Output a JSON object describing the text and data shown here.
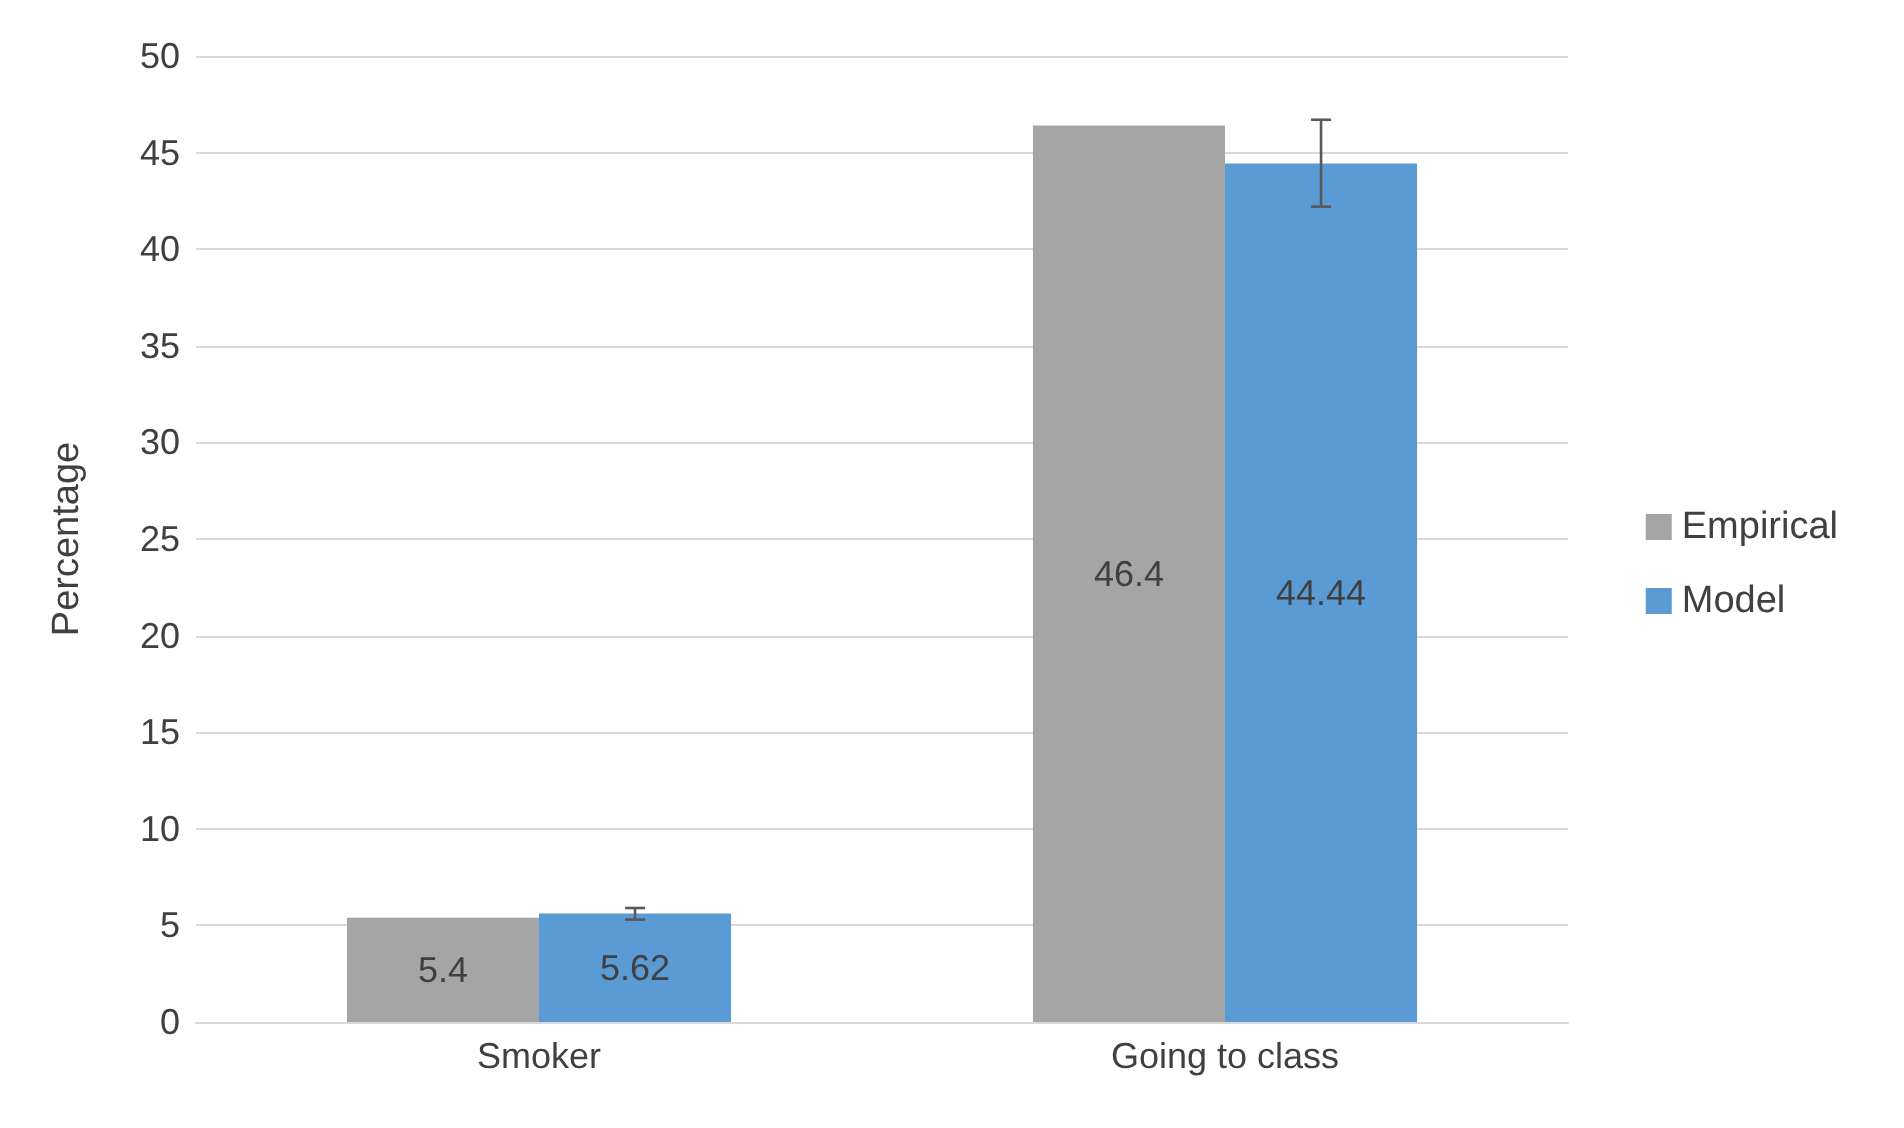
{
  "chart_data": {
    "type": "bar",
    "ylabel": "Percentage",
    "categories": [
      "Smoker",
      "Going to class"
    ],
    "series": [
      {
        "name": "Empirical",
        "color": "#a5a5a5",
        "values": [
          5.4,
          46.4
        ]
      },
      {
        "name": "Model",
        "color": "#5b9bd5",
        "values": [
          5.62,
          44.44
        ],
        "errors": [
          [
            5.3,
            5.9
          ],
          [
            42.2,
            46.7
          ]
        ]
      }
    ],
    "ylim": [
      0,
      50
    ],
    "yticks": [
      0,
      5,
      10,
      15,
      20,
      25,
      30,
      35,
      40,
      45,
      50
    ],
    "grid": "y",
    "legend": "right",
    "data_labels": true
  }
}
